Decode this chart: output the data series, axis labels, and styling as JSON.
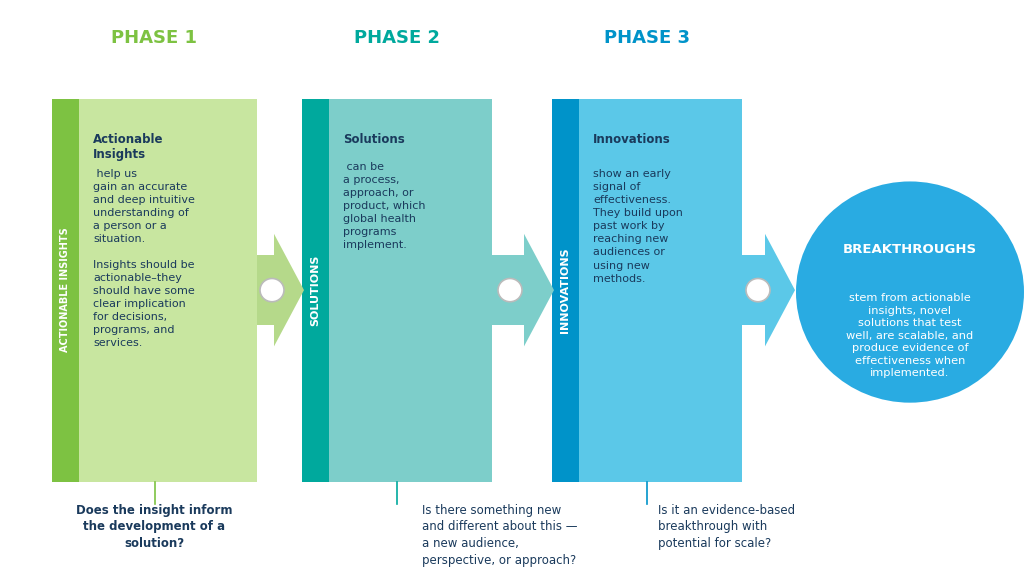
{
  "bg_color": "#ffffff",
  "phase1_color": "#7dc242",
  "phase1_light": "#c8e6a0",
  "phase2_dark": "#00a99d",
  "phase2_light": "#7dceca",
  "phase3_dark": "#0093c9",
  "phase3_light": "#5bc8e8",
  "breakthrough_color": "#29abe2",
  "arrow_color_1": "#b5d98a",
  "arrow_color_2": "#7dceca",
  "arrow_color_3": "#5bc8e8",
  "text_dark": "#1a3a5c",
  "text_white": "#ffffff",
  "phase1_title": "PHASE 1",
  "phase2_title": "PHASE 2",
  "phase3_title": "PHASE 3",
  "phase1_side_label": "ACTIONABLE INSIGHTS",
  "phase2_side_label": "SOLUTIONS",
  "phase3_side_label": "INNOVATIONS",
  "phase1_bold": "Actionable\nInsights",
  "phase1_rest": " help us\ngain an accurate\nand deep intuitive\nunderstanding of\na person or a\nsituation.\n\nInsights should be\nactionable–they\nshould have some\nclear implication\nfor decisions,\nprograms, and\nservices.",
  "phase2_bold": "Solutions",
  "phase2_rest": " can be\na process,\napproach, or\nproduct, which\nglobal health\nprograms\nimplement.",
  "phase3_bold": "Innovations",
  "phase3_rest": "\nshow an early\nsignal of\neffectiveness.\nThey build upon\npast work by\nreaching new\naudiences or\nusing new\nmethods.",
  "breakthrough_bold": "BREAKTHROUGHS",
  "breakthrough_rest": "\nstem from actionable\ninsights, novel\nsolutions that test\nwell, are scalable, and\nproduce evidence of\neffectiveness when\nimplemented.",
  "q1_text": "Does the insight inform\nthe development of a\nsolution?",
  "q2_text": "Is there something new\nand different about this —\na new audience,\nperspective, or approach?",
  "q3_text": "Is it an evidence-based\nbreakthrough with\npotential for scale?"
}
